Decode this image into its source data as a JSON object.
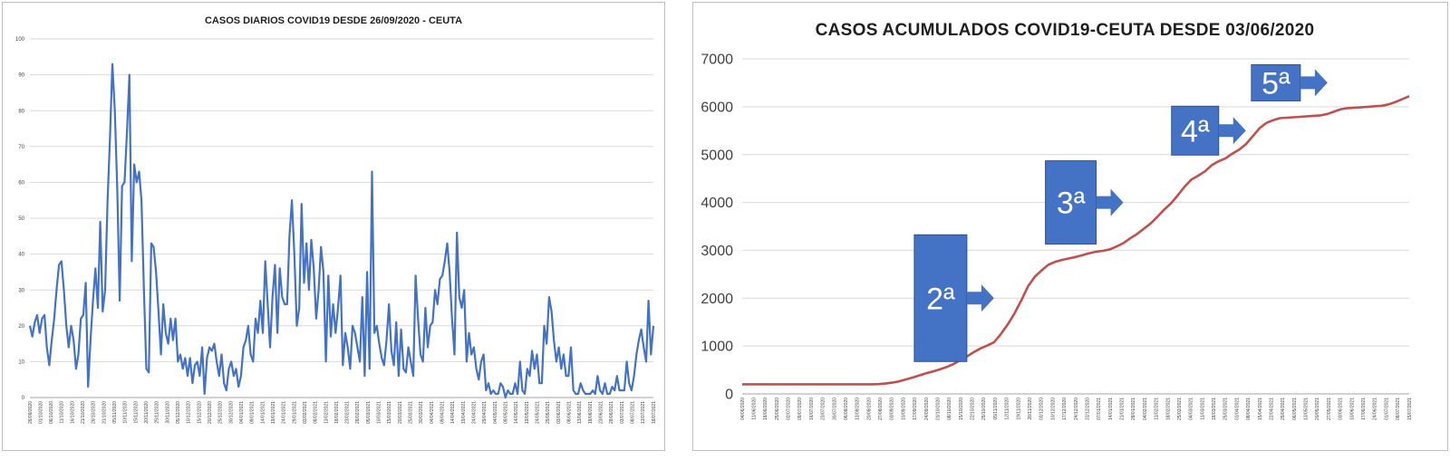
{
  "chart_data": [
    {
      "type": "line",
      "title": "CASOS  DIARIOS COVID19 DESDE 26/09/2020 - CEUTA",
      "ylim": [
        0,
        100
      ],
      "yticks": [
        0,
        10,
        20,
        30,
        40,
        50,
        60,
        70,
        80,
        90,
        100
      ],
      "grid": true,
      "series_color": "#4472c4",
      "x_tick_labels": [
        "26/09/2020",
        "01/10/2020",
        "06/10/2020",
        "11/10/2020",
        "16/10/2020",
        "21/10/2020",
        "26/10/2020",
        "31/10/2020",
        "05/11/2020",
        "10/11/2020",
        "15/11/2020",
        "20/11/2020",
        "25/11/2020",
        "30/11/2020",
        "05/12/2020",
        "10/12/2020",
        "15/12/2020",
        "20/12/2020",
        "25/12/2020",
        "30/12/2020",
        "04/01/2021",
        "09/01/2021",
        "14/01/2021",
        "19/01/2021",
        "24/01/2021",
        "29/01/2021",
        "03/02/2021",
        "08/02/2021",
        "13/02/2021",
        "18/02/2021",
        "23/02/2021",
        "28/02/2021",
        "05/03/2021",
        "10/03/2021",
        "15/03/2021",
        "20/03/2021",
        "25/03/2021",
        "30/03/2021",
        "04/04/2021",
        "09/04/2021",
        "14/04/2021",
        "19/04/2021",
        "24/04/2021",
        "29/04/2021",
        "04/05/2021",
        "09/05/2021",
        "14/05/2021",
        "19/05/2021",
        "24/05/2021",
        "29/05/2021",
        "03/06/2021",
        "08/06/2021",
        "13/06/2021",
        "18/06/2021",
        "23/06/2021",
        "28/06/2021",
        "03/07/2021",
        "08/07/2021",
        "13/07/2021",
        "18/07/2021"
      ],
      "values": [
        20,
        17,
        21,
        23,
        18,
        22,
        23,
        14,
        9,
        16,
        22,
        30,
        37,
        38,
        30,
        20,
        14,
        20,
        16,
        8,
        12,
        22,
        23,
        32,
        3,
        16,
        27,
        36,
        25,
        49,
        24,
        30,
        55,
        72,
        93,
        80,
        58,
        27,
        59,
        60,
        74,
        90,
        38,
        65,
        60,
        63,
        55,
        30,
        8,
        7,
        43,
        42,
        35,
        24,
        12,
        26,
        18,
        15,
        22,
        16,
        22,
        10,
        12,
        8,
        11,
        6,
        11,
        4,
        9,
        10,
        6,
        14,
        1,
        11,
        14,
        13,
        15,
        10,
        6,
        12,
        4,
        2,
        8,
        10,
        6,
        8,
        3,
        6,
        14,
        16,
        20,
        12,
        10,
        22,
        18,
        27,
        18,
        38,
        26,
        14,
        28,
        37,
        18,
        36,
        28,
        26,
        26,
        45,
        55,
        40,
        20,
        25,
        54,
        32,
        43,
        30,
        44,
        36,
        22,
        30,
        42,
        35,
        10,
        34,
        17,
        26,
        18,
        25,
        34,
        9,
        18,
        14,
        8,
        20,
        18,
        14,
        10,
        28,
        6,
        35,
        8,
        63,
        18,
        20,
        15,
        11,
        9,
        16,
        26,
        13,
        9,
        21,
        6,
        19,
        8,
        7,
        14,
        10,
        6,
        34,
        22,
        12,
        10,
        25,
        14,
        20,
        21,
        30,
        26,
        33,
        34,
        38,
        43,
        35,
        22,
        12,
        46,
        28,
        25,
        30,
        10,
        18,
        12,
        14,
        8,
        5,
        10,
        12,
        2,
        4,
        1,
        2,
        1,
        1,
        4,
        3,
        0,
        2,
        1,
        1,
        4,
        1,
        10,
        2,
        1,
        8,
        6,
        13,
        8,
        12,
        4,
        4,
        20,
        15,
        28,
        24,
        16,
        10,
        14,
        8,
        12,
        6,
        6,
        14,
        2,
        1,
        1,
        4,
        2,
        1,
        1,
        1,
        2,
        1,
        6,
        2,
        1,
        4,
        1,
        1,
        3,
        2,
        6,
        2,
        2,
        2,
        10,
        4,
        2,
        6,
        12,
        16,
        19,
        14,
        10,
        27,
        12,
        20
      ]
    },
    {
      "type": "line",
      "title": "CASOS ACUMULADOS COVID19-CEUTA DESDE 03/06/2020",
      "ylim": [
        0,
        7000
      ],
      "yticks": [
        0,
        1000,
        2000,
        3000,
        4000,
        5000,
        6000,
        7000
      ],
      "grid": true,
      "series_color": "#c0504d",
      "x_tick_labels": [
        "04/06/2020",
        "11/06/2020",
        "18/06/2020",
        "25/06/2020",
        "02/07/2020",
        "09/07/2020",
        "16/07/2020",
        "23/07/2020",
        "30/07/2020",
        "06/08/2020",
        "13/08/2020",
        "20/08/2020",
        "27/08/2020",
        "03/09/2020",
        "10/09/2020",
        "17/09/2020",
        "24/09/2020",
        "01/10/2020",
        "08/10/2020",
        "15/10/2020",
        "22/10/2020",
        "29/10/2020",
        "05/11/2020",
        "12/11/2020",
        "19/11/2020",
        "26/11/2020",
        "03/12/2020",
        "10/12/2020",
        "17/12/2020",
        "24/12/2020",
        "31/12/2020",
        "07/01/2021",
        "14/01/2021",
        "21/01/2021",
        "28/01/2021",
        "04/02/2021",
        "11/02/2021",
        "18/02/2021",
        "25/02/2021",
        "04/03/2021",
        "11/03/2021",
        "18/03/2021",
        "25/03/2021",
        "01/04/2021",
        "08/04/2021",
        "15/04/2021",
        "22/04/2021",
        "29/04/2021",
        "06/05/2021",
        "13/05/2021",
        "20/05/2021",
        "27/05/2021",
        "03/06/2021",
        "10/06/2021",
        "17/06/2021",
        "24/06/2021",
        "01/07/2021",
        "08/07/2021",
        "15/07/2021"
      ],
      "values": [
        200,
        200,
        200,
        200,
        200,
        200,
        200,
        200,
        200,
        200,
        200,
        200,
        200,
        200,
        200,
        200,
        200,
        200,
        200,
        200,
        205,
        215,
        235,
        260,
        300,
        340,
        385,
        430,
        470,
        510,
        560,
        620,
        700,
        780,
        870,
        950,
        1010,
        1080,
        1250,
        1450,
        1680,
        1950,
        2250,
        2450,
        2580,
        2700,
        2760,
        2800,
        2830,
        2860,
        2900,
        2940,
        2970,
        2990,
        3020,
        3080,
        3150,
        3250,
        3340,
        3450,
        3560,
        3700,
        3850,
        3980,
        4150,
        4330,
        4480,
        4560,
        4650,
        4780,
        4860,
        4920,
        5020,
        5100,
        5220,
        5380,
        5550,
        5660,
        5720,
        5760,
        5770,
        5780,
        5790,
        5800,
        5810,
        5820,
        5850,
        5900,
        5950,
        5970,
        5980,
        5990,
        6000,
        6010,
        6020,
        6050,
        6100,
        6160,
        6220
      ],
      "annotations": [
        {
          "label": "2ª",
          "x_index": 37,
          "y": 2000
        },
        {
          "label": "3ª",
          "x_index": 56,
          "y": 4000
        },
        {
          "label": "4ª",
          "x_index": 74,
          "y": 5500
        },
        {
          "label": "5ª",
          "x_index": 86,
          "y": 6500
        }
      ],
      "annotation_color": "#4472c4"
    }
  ]
}
